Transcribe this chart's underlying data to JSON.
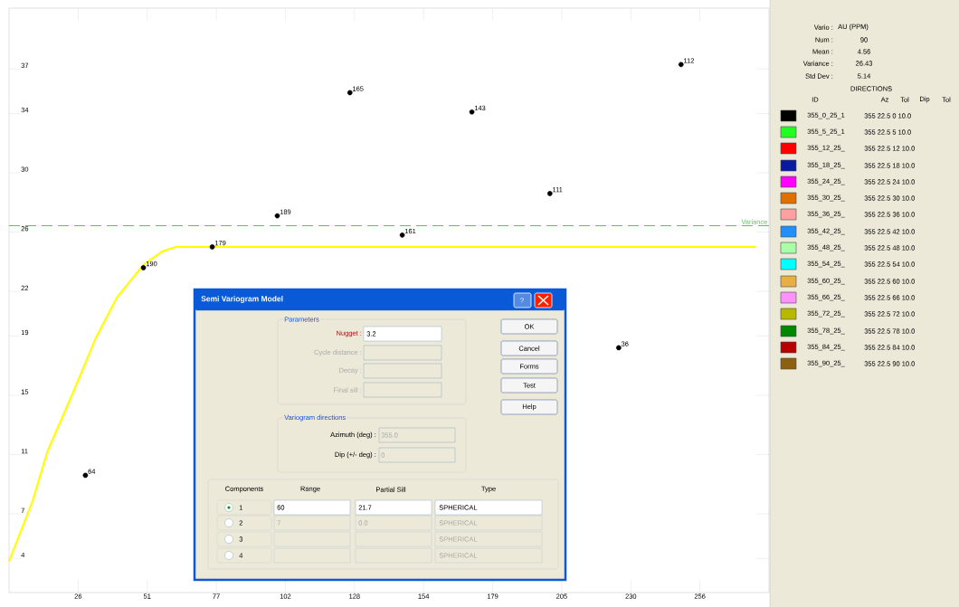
{
  "chart_data": {
    "type": "scatter",
    "legend": "right",
    "x": [
      249.0,
      126.3,
      171.5,
      200.4,
      99.4,
      145.7,
      75.3,
      49.8,
      225.9,
      28.3
    ],
    "xlim": [
      0,
      281.6
    ],
    "ylim": [
      1.7,
      41.1
    ],
    "xticks": [
      {
        "value": 25.6,
        "label": "26"
      },
      {
        "value": 51.2,
        "label": "51"
      },
      {
        "value": 76.8,
        "label": "77"
      },
      {
        "value": 102.4,
        "label": "102"
      },
      {
        "value": 128,
        "label": "128"
      },
      {
        "value": 153.6,
        "label": "154"
      },
      {
        "value": 179.2,
        "label": "179"
      },
      {
        "value": 204.8,
        "label": "205"
      },
      {
        "value": 230.4,
        "label": "230"
      },
      {
        "value": 256,
        "label": "256"
      }
    ],
    "yticks": [
      4,
      7,
      11,
      15,
      19,
      22,
      26,
      30,
      34,
      37
    ],
    "series": [
      {
        "name": "355_0_25_1",
        "color": "#000000",
        "marker": "circle",
        "values": [
          37.3,
          35.4,
          34.1,
          28.6,
          27.1,
          25.8,
          25.0,
          23.6,
          18.2,
          9.6
        ]
      },
      {
        "name": "355_5_25_1",
        "color": "#22ff22",
        "values": [
          null,
          null,
          null,
          null,
          null,
          null,
          null,
          null,
          null,
          null
        ]
      },
      {
        "name": "355_12_25_",
        "color": "#ff0000",
        "values": [
          null,
          null,
          null,
          null,
          null,
          null,
          null,
          null,
          null,
          null
        ]
      },
      {
        "name": "355_18_25_",
        "color": "#0a1aa0",
        "values": [
          null,
          null,
          null,
          null,
          null,
          null,
          null,
          null,
          null,
          null
        ]
      },
      {
        "name": "355_24_25_",
        "color": "#ff00ff",
        "values": [
          null,
          null,
          null,
          null,
          null,
          null,
          null,
          null,
          null,
          null
        ]
      },
      {
        "name": "355_30_25_",
        "color": "#e07000",
        "values": [
          null,
          null,
          null,
          null,
          null,
          null,
          null,
          null,
          null,
          null
        ]
      },
      {
        "name": "355_36_25_",
        "color": "#ffa0a0",
        "values": [
          null,
          null,
          null,
          null,
          null,
          null,
          null,
          null,
          null,
          null
        ]
      },
      {
        "name": "355_42_25_",
        "color": "#2090ff",
        "values": [
          null,
          null,
          null,
          null,
          null,
          null,
          null,
          null,
          null,
          null
        ]
      },
      {
        "name": "355_48_25_",
        "color": "#a8ffa8",
        "values": [
          null,
          null,
          null,
          null,
          null,
          null,
          null,
          null,
          null,
          null
        ]
      },
      {
        "name": "355_54_25_",
        "color": "#00ffff",
        "values": [
          null,
          null,
          null,
          null,
          null,
          null,
          null,
          null,
          null,
          null
        ]
      },
      {
        "name": "355_60_25_",
        "color": "#e8b040",
        "values": [
          null,
          null,
          null,
          null,
          null,
          null,
          null,
          null,
          null,
          null
        ]
      },
      {
        "name": "355_66_25_",
        "color": "#ff90ff",
        "values": [
          null,
          null,
          null,
          null,
          null,
          null,
          null,
          null,
          null,
          null
        ]
      },
      {
        "name": "355_72_25_",
        "color": "#b8b800",
        "values": [
          null,
          null,
          null,
          null,
          null,
          null,
          null,
          null,
          null,
          null
        ]
      },
      {
        "name": "355_78_25_",
        "color": "#008800",
        "values": [
          null,
          null,
          null,
          null,
          null,
          null,
          null,
          null,
          null,
          null
        ]
      },
      {
        "name": "355_84_25_",
        "color": "#b80000",
        "values": [
          null,
          null,
          null,
          null,
          null,
          null,
          null,
          null,
          null,
          null
        ]
      },
      {
        "name": "355_90_25_",
        "color": "#8b6010",
        "values": [
          null,
          null,
          null,
          null,
          null,
          null,
          null,
          null,
          null,
          null
        ]
      },
      {
        "type": "line",
        "marker": "none",
        "color": "#ffff00",
        "x": [
          0,
          8.8,
          14.2,
          24,
          32,
          40,
          49.8,
          56.8,
          61.8,
          276.6
        ],
        "values": [
          3.8,
          7.9,
          11.2,
          15.3,
          18.8,
          21.6,
          23.8,
          24.7,
          25.0,
          25.0
        ]
      }
    ],
    "ref_lines": [
      {
        "axis": "y",
        "value": 26.43,
        "label": "Variance",
        "color": "#66bb66",
        "line_style": "dashed"
      }
    ],
    "annotations": [
      "Semi Variogram Model",
      "?",
      "Parameters",
      "Nugget :",
      "3.2",
      "Cycle distance :",
      "Decay :",
      "Final sill :",
      "Variogram directions",
      "Azimuth (deg) :",
      "355.0",
      "Dip (+/- deg) :",
      "0",
      "OK",
      "Cancel",
      "Forms",
      "Test",
      "Help",
      "Components",
      "Range",
      "Partial Sill",
      "Type",
      "1",
      "60",
      "21.7",
      "SPHERICAL",
      "2",
      "7",
      "0.0",
      "SPHERICAL",
      "3",
      "SPHERICAL",
      "4",
      "SPHERICAL",
      "Vario :",
      "AU (PPM)",
      "Num :",
      "90",
      "Mean :",
      "4.56",
      "Variance :",
      "26.43",
      "Std Dev :",
      "5.14",
      "DIRECTIONS",
      "ID",
      "Az",
      "Tol",
      "Dip",
      "Tol",
      "355 22.5 0 10.0",
      "355 22.5 5 10.0",
      "355 22.5 12 10.0",
      "355 22.5 18 10.0",
      "355 22.5 24 10.0",
      "355 22.5 30 10.0",
      "355 22.5 36 10.0",
      "355 22.5 42 10.0",
      "355 22.5 48 10.0",
      "355 22.5 54 10.0",
      "355 22.5 60 10.0",
      "355 22.5 66 10.0",
      "355 22.5 72 10.0",
      "355 22.5 78 10.0",
      "355 22.5 84 10.0",
      "355 22.5 90 10.0",
      {
        "text": "112",
        "x": 249.0,
        "y": 37.3
      },
      {
        "text": "165",
        "x": 126.3,
        "y": 35.4
      },
      {
        "text": "143",
        "x": 171.5,
        "y": 34.1
      },
      {
        "text": "111",
        "x": 200.4,
        "y": 28.6
      },
      {
        "text": "189",
        "x": 99.4,
        "y": 27.1
      },
      {
        "text": "161",
        "x": 145.7,
        "y": 25.8
      },
      {
        "text": "179",
        "x": 75.3,
        "y": 25.0
      },
      {
        "text": "190",
        "x": 49.8,
        "y": 23.6
      },
      {
        "text": "36",
        "x": 225.9,
        "y": 18.2
      },
      {
        "text": "64",
        "x": 28.3,
        "y": 9.6
      }
    ]
  }
}
